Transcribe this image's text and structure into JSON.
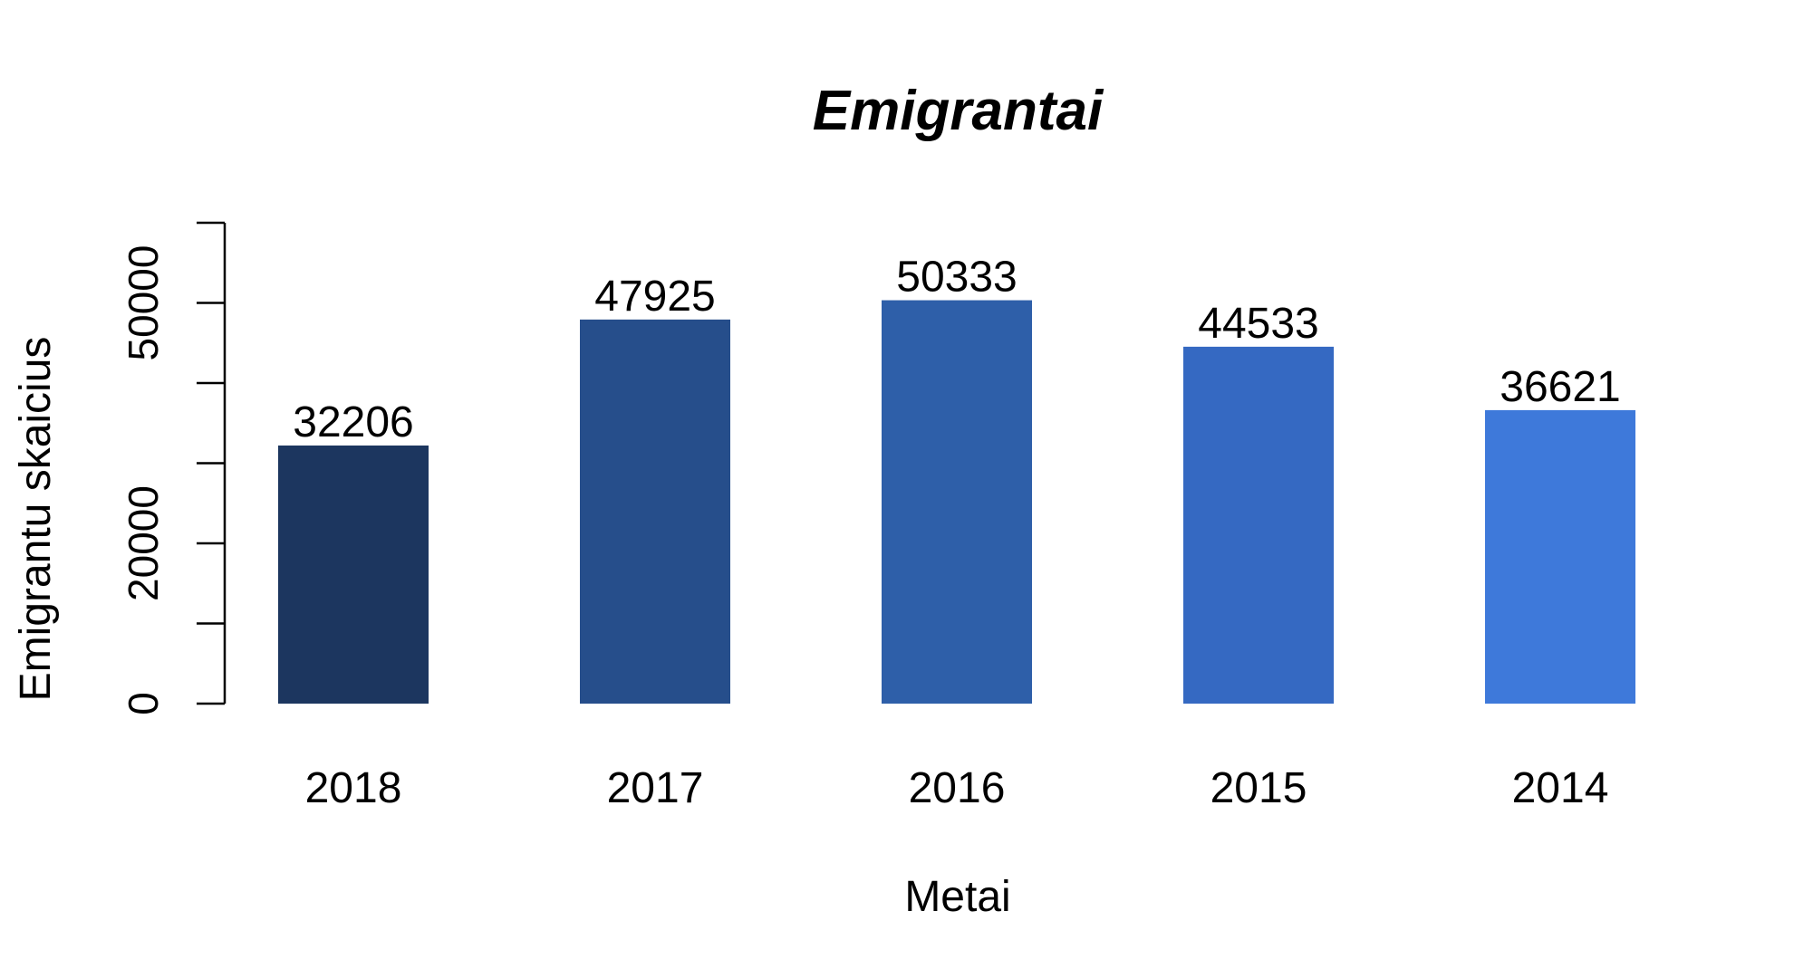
{
  "chart_data": {
    "type": "bar",
    "title": "Emigrantai",
    "xlabel": "Metai",
    "ylabel": "Emigrantu skaicius",
    "categories": [
      "2018",
      "2017",
      "2016",
      "2015",
      "2014"
    ],
    "values": [
      32206,
      47925,
      50333,
      44533,
      36621
    ],
    "value_labels": [
      "32206",
      "47925",
      "50333",
      "44533",
      "36621"
    ],
    "bar_colors": [
      "#1c365f",
      "#264e8b",
      "#2e5fa9",
      "#3569c2",
      "#3e79da"
    ],
    "ylim": [
      0,
      60000
    ],
    "y_ticks": [
      0,
      10000,
      20000,
      30000,
      40000,
      50000,
      60000
    ],
    "y_tick_labels": [
      "0",
      "",
      "20000",
      "",
      "",
      "50000",
      ""
    ],
    "grid": false,
    "legend": "none"
  }
}
